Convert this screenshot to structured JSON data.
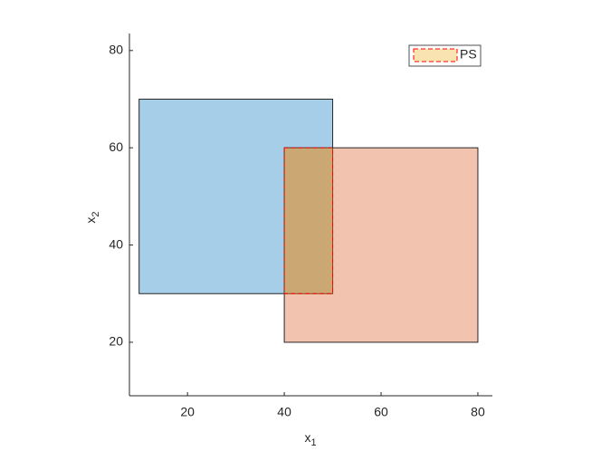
{
  "chart_data": {
    "type": "rect",
    "xlabel": "x",
    "xlabel_sub": "1",
    "ylabel": "x",
    "ylabel_sub": "2",
    "xlim": [
      8,
      83
    ],
    "ylim": [
      9,
      83.5
    ],
    "xticks": [
      20,
      40,
      60,
      80
    ],
    "yticks": [
      20,
      40,
      60,
      80
    ],
    "alpha": 0.35,
    "series": [
      {
        "color": "#0072bd",
        "x": [
          10,
          50
        ],
        "y": [
          30,
          70
        ]
      },
      {
        "color": "#d95319",
        "x": [
          40,
          80
        ],
        "y": [
          20,
          60
        ]
      },
      {
        "name": "PS",
        "color": "#edb120",
        "edge": "#ff0000",
        "x": [
          40,
          50
        ],
        "y": [
          30,
          60
        ]
      }
    ],
    "legend": "top-right"
  }
}
